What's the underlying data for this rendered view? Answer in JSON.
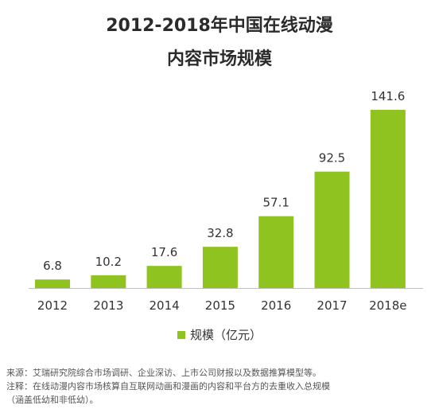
{
  "chart_data": {
    "type": "bar",
    "title_line1": "2012-2018年中国在线动漫",
    "title_line2": "内容市场规模",
    "categories": [
      "2012",
      "2013",
      "2014",
      "2015",
      "2016",
      "2017",
      "2018e"
    ],
    "series": [
      {
        "name": "规模（亿元）",
        "values": [
          6.8,
          10.2,
          17.6,
          32.8,
          57.1,
          92.5,
          141.6
        ]
      }
    ],
    "value_labels": [
      "6.8",
      "10.2",
      "17.6",
      "32.8",
      "57.1",
      "92.5",
      "141.6"
    ],
    "ylim": [
      0,
      141.6
    ],
    "grid": false,
    "legend_position": "bottom",
    "bar_color": "#8fc31f",
    "axis_color": "#bfbfbf"
  },
  "notes": {
    "source": "来源：艾瑞研究院综合市场调研、企业深访、上市公司财报以及数据推算模型等。",
    "remark_line1": "注释：在线动漫内容市场核算自互联网动画和漫画的内容和平台方的去重收入总规模",
    "remark_line2": "（涵盖低幼和非低幼）。"
  }
}
